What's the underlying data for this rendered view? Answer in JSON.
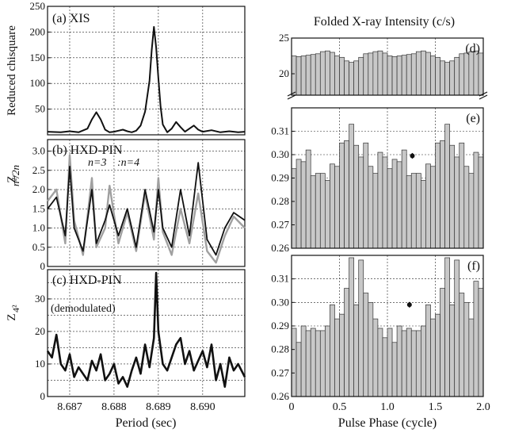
{
  "figure": {
    "right_title": "Folded X-ray Intensity (c/s)",
    "left_xlabel": "Period (sec)",
    "right_xlabel": "Pulse Phase (cycle)"
  },
  "chart_data": [
    {
      "panel": "a",
      "type": "line",
      "label": "(a) XIS",
      "ylabel": "Reduced chisquare",
      "xlim": [
        8.6865,
        8.69095
      ],
      "ylim": [
        0,
        250
      ],
      "xticks": [
        8.687,
        8.688,
        8.689,
        8.69
      ],
      "yticks": [
        50,
        100,
        150,
        200,
        250
      ],
      "grid": true,
      "series": [
        {
          "x": [
            8.6865,
            8.6868,
            8.687,
            8.6872,
            8.6874,
            8.6875,
            8.6876,
            8.6877,
            8.6878,
            8.6879,
            8.688,
            8.6881,
            8.6882,
            8.6883,
            8.6884,
            8.6885,
            8.6886,
            8.6887,
            8.6888,
            8.68885,
            8.6889,
            8.68895,
            8.689,
            8.68905,
            8.6891,
            8.6892,
            8.6893,
            8.6894,
            8.6895,
            8.6896,
            8.6897,
            8.6898,
            8.6899,
            8.69,
            8.6902,
            8.6904,
            8.6906,
            8.6908,
            8.69095
          ],
          "values": [
            6,
            5,
            7,
            5,
            12,
            30,
            44,
            30,
            10,
            5,
            6,
            8,
            10,
            7,
            5,
            8,
            18,
            45,
            105,
            165,
            210,
            170,
            110,
            55,
            20,
            5,
            12,
            25,
            15,
            6,
            12,
            18,
            10,
            6,
            9,
            5,
            7,
            5,
            6
          ]
        }
      ]
    },
    {
      "panel": "b",
      "type": "line",
      "label": "(b) HXD-PIN",
      "ylabel": "Z_n^2/2n",
      "xlim": [
        8.6865,
        8.69095
      ],
      "ylim": [
        0,
        3.3
      ],
      "yticks": [
        0,
        0.5,
        1.0,
        1.5,
        2.0,
        2.5,
        3.0
      ],
      "grid": true,
      "series": [
        {
          "name": "n=3",
          "color": "#a0a0a0",
          "x": [
            8.6865,
            8.6867,
            8.6869,
            8.687,
            8.6871,
            8.6873,
            8.6875,
            8.6876,
            8.6878,
            8.6879,
            8.6881,
            8.6883,
            8.6885,
            8.6887,
            8.6889,
            8.689,
            8.6891,
            8.6893,
            8.6895,
            8.6897,
            8.6899,
            8.6901,
            8.6903,
            8.6905,
            8.6907,
            8.69095
          ],
          "values": [
            1.7,
            2.0,
            0.6,
            2.9,
            1.2,
            0.3,
            2.3,
            0.5,
            1.0,
            2.1,
            0.6,
            1.4,
            0.4,
            1.9,
            0.7,
            2.3,
            0.9,
            0.3,
            1.5,
            0.6,
            1.9,
            0.4,
            0.1,
            0.8,
            1.3,
            1.0
          ]
        },
        {
          "name": "n=4",
          "color": "#111111",
          "x": [
            8.6865,
            8.6867,
            8.6869,
            8.687,
            8.6871,
            8.6873,
            8.6875,
            8.6876,
            8.6878,
            8.6879,
            8.6881,
            8.6883,
            8.6885,
            8.6887,
            8.6889,
            8.689,
            8.6891,
            8.6893,
            8.6895,
            8.6897,
            8.6899,
            8.6901,
            8.6903,
            8.6905,
            8.6907,
            8.69095
          ],
          "values": [
            1.5,
            1.8,
            0.8,
            2.6,
            1.0,
            0.4,
            2.0,
            0.6,
            1.2,
            1.6,
            0.8,
            1.5,
            0.5,
            2.0,
            0.9,
            2.0,
            1.0,
            0.5,
            2.0,
            0.8,
            2.7,
            0.7,
            0.3,
            1.0,
            1.4,
            1.2
          ]
        }
      ]
    },
    {
      "panel": "c",
      "type": "line",
      "label": "(c) HXD-PIN",
      "annotation": "(demodulated)",
      "ylabel": "Z_4^2",
      "xlim": [
        8.6865,
        8.69095
      ],
      "ylim": [
        0,
        39
      ],
      "yticks": [
        0,
        10,
        20,
        30
      ],
      "xticklabels": [
        "8.687",
        "8.688",
        "8.689",
        "8.690"
      ],
      "grid": true,
      "series": [
        {
          "x": [
            8.6865,
            8.6866,
            8.6867,
            8.6868,
            8.6869,
            8.687,
            8.6871,
            8.6872,
            8.6873,
            8.6874,
            8.6875,
            8.6876,
            8.6877,
            8.6878,
            8.6879,
            8.688,
            8.6881,
            8.6882,
            8.6883,
            8.6884,
            8.6885,
            8.6886,
            8.6887,
            8.6888,
            8.6889,
            8.68895,
            8.689,
            8.6891,
            8.6892,
            8.6893,
            8.6894,
            8.6895,
            8.6896,
            8.6897,
            8.6898,
            8.6899,
            8.69,
            8.6901,
            8.6902,
            8.6903,
            8.6904,
            8.6905,
            8.6906,
            8.6907,
            8.6908,
            8.69095
          ],
          "values": [
            14,
            12,
            19,
            10,
            8,
            13,
            6,
            9,
            7,
            5,
            11,
            8,
            13,
            5,
            7,
            10,
            4,
            6,
            3,
            8,
            12,
            7,
            16,
            9,
            18,
            38,
            20,
            10,
            8,
            12,
            16,
            18,
            10,
            14,
            8,
            11,
            14,
            9,
            16,
            5,
            10,
            3,
            12,
            8,
            10,
            6
          ]
        }
      ]
    },
    {
      "panel": "d",
      "type": "bar",
      "label": "(d)",
      "xlim": [
        0,
        2
      ],
      "ylim": [
        17,
        25
      ],
      "yticks": [
        20,
        25
      ],
      "grid": true,
      "values": [
        22.5,
        22.4,
        22.5,
        22.6,
        22.7,
        22.8,
        23.1,
        23.2,
        23.0,
        22.5,
        22.3,
        21.8,
        21.6,
        21.8,
        22.3,
        22.8,
        22.9,
        23.1,
        23.2,
        22.9,
        22.5,
        22.4,
        22.5,
        22.6,
        22.7,
        22.8,
        23.1,
        23.2,
        23.0,
        22.5,
        22.3,
        21.8,
        21.6,
        21.8,
        22.3,
        22.8,
        22.9,
        23.1,
        23.2,
        22.9
      ]
    },
    {
      "panel": "e",
      "type": "bar",
      "label": "(e)",
      "xlim": [
        0,
        2
      ],
      "ylim": [
        0.26,
        0.32
      ],
      "yticks": [
        0.26,
        0.27,
        0.28,
        0.29,
        0.3,
        0.31
      ],
      "grid": true,
      "error_point": {
        "x": 1.26,
        "y": 0.2995,
        "err": 0.0012
      },
      "values": [
        0.294,
        0.298,
        0.297,
        0.302,
        0.291,
        0.292,
        0.292,
        0.289,
        0.296,
        0.295,
        0.305,
        0.306,
        0.313,
        0.304,
        0.299,
        0.305,
        0.295,
        0.292,
        0.301,
        0.299,
        0.294,
        0.298,
        0.297,
        0.302,
        0.291,
        0.292,
        0.292,
        0.289,
        0.296,
        0.295,
        0.305,
        0.306,
        0.313,
        0.304,
        0.299,
        0.305,
        0.295,
        0.292,
        0.301,
        0.299
      ]
    },
    {
      "panel": "f",
      "type": "bar",
      "label": "(f)",
      "xlim": [
        0,
        2
      ],
      "ylim": [
        0.26,
        0.32
      ],
      "yticks": [
        0.26,
        0.27,
        0.28,
        0.29,
        0.3,
        0.31
      ],
      "xticklabels": [
        "0",
        "0.5",
        "1.0",
        "1.5",
        "2.0"
      ],
      "grid": true,
      "error_point": {
        "x": 1.23,
        "y": 0.299,
        "err": 0.0012
      },
      "values": [
        0.289,
        0.283,
        0.29,
        0.288,
        0.289,
        0.288,
        0.288,
        0.29,
        0.299,
        0.293,
        0.295,
        0.306,
        0.319,
        0.299,
        0.318,
        0.304,
        0.3,
        0.293,
        0.289,
        0.285,
        0.289,
        0.283,
        0.29,
        0.288,
        0.289,
        0.288,
        0.288,
        0.29,
        0.299,
        0.293,
        0.295,
        0.306,
        0.319,
        0.299,
        0.318,
        0.304,
        0.3,
        0.293,
        0.309,
        0.306
      ]
    }
  ]
}
